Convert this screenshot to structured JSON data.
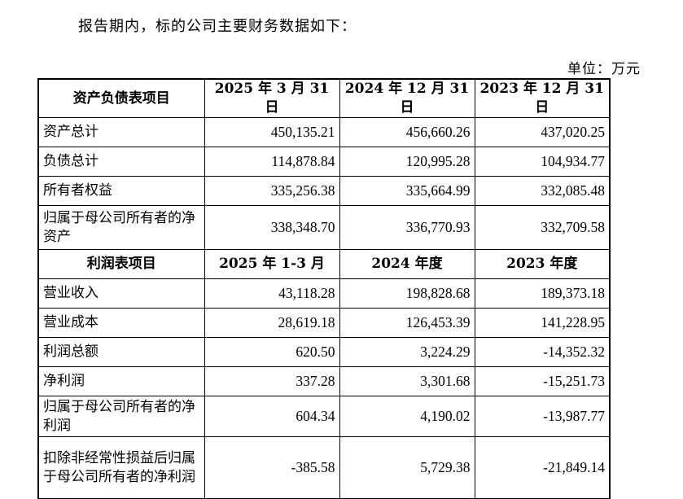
{
  "intro": "报告期内，标的公司主要财务数据如下：",
  "unit": "单位：万元",
  "balance_header": [
    "资产负债表项目",
    "2025 年 3 月 31 日",
    "2024 年 12 月 31 日",
    "2023 年 12 月 31 日"
  ],
  "balance_rows": [
    {
      "name": "资产总计",
      "v": [
        "450,135.21",
        "456,660.26",
        "437,020.25"
      ]
    },
    {
      "name": "负债总计",
      "v": [
        "114,878.84",
        "120,995.28",
        "104,934.77"
      ]
    },
    {
      "name": "所有者权益",
      "v": [
        "335,256.38",
        "335,664.99",
        "332,085.48"
      ]
    },
    {
      "name": "归属于母公司所有者的净资产",
      "v": [
        "338,348.70",
        "336,770.93",
        "332,709.58"
      ]
    }
  ],
  "income_header": [
    "利润表项目",
    "2025 年 1-3 月",
    "2024 年度",
    "2023 年度"
  ],
  "income_rows": [
    {
      "name": "营业收入",
      "v": [
        "43,118.28",
        "198,828.68",
        "189,373.18"
      ]
    },
    {
      "name": "营业成本",
      "v": [
        "28,619.18",
        "126,453.39",
        "141,228.95"
      ]
    },
    {
      "name": "利润总额",
      "v": [
        "620.50",
        "3,224.29",
        "-14,352.32"
      ]
    },
    {
      "name": "净利润",
      "v": [
        "337.28",
        "3,301.68",
        "-15,251.73"
      ]
    },
    {
      "name": "归属于母公司所有者的净利润",
      "v": [
        "604.34",
        "4,190.02",
        "-13,987.77"
      ]
    },
    {
      "name": "扣除非经常性损益后归属于母公司所有者的净利润",
      "v": [
        "-385.58",
        "5,729.38",
        "-21,849.14"
      ]
    }
  ]
}
